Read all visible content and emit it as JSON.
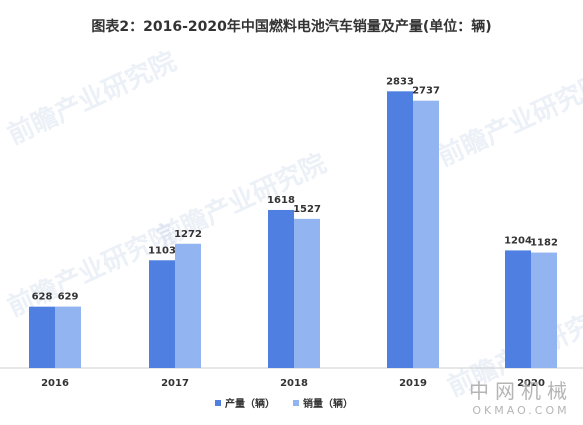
{
  "watermark": "前瞻产业研究院",
  "brand": {
    "cn": "中网机械",
    "en": "OKMAO.COM"
  },
  "chart_data": {
    "type": "bar",
    "title": "图表2：2016-2020年中国燃料电池汽车销量及产量(单位：辆)",
    "categories": [
      "2016",
      "2017",
      "2018",
      "2019",
      "2020"
    ],
    "series": [
      {
        "name": "产量（辆）",
        "color": "#4f7fe0",
        "values": [
          628,
          1103,
          1618,
          2833,
          1204
        ]
      },
      {
        "name": "销量（辆）",
        "color": "#92b4f0",
        "values": [
          629,
          1272,
          1527,
          2737,
          1182
        ]
      }
    ],
    "ylim": [
      0,
      3000
    ],
    "grid": false,
    "legend": "bottom"
  }
}
